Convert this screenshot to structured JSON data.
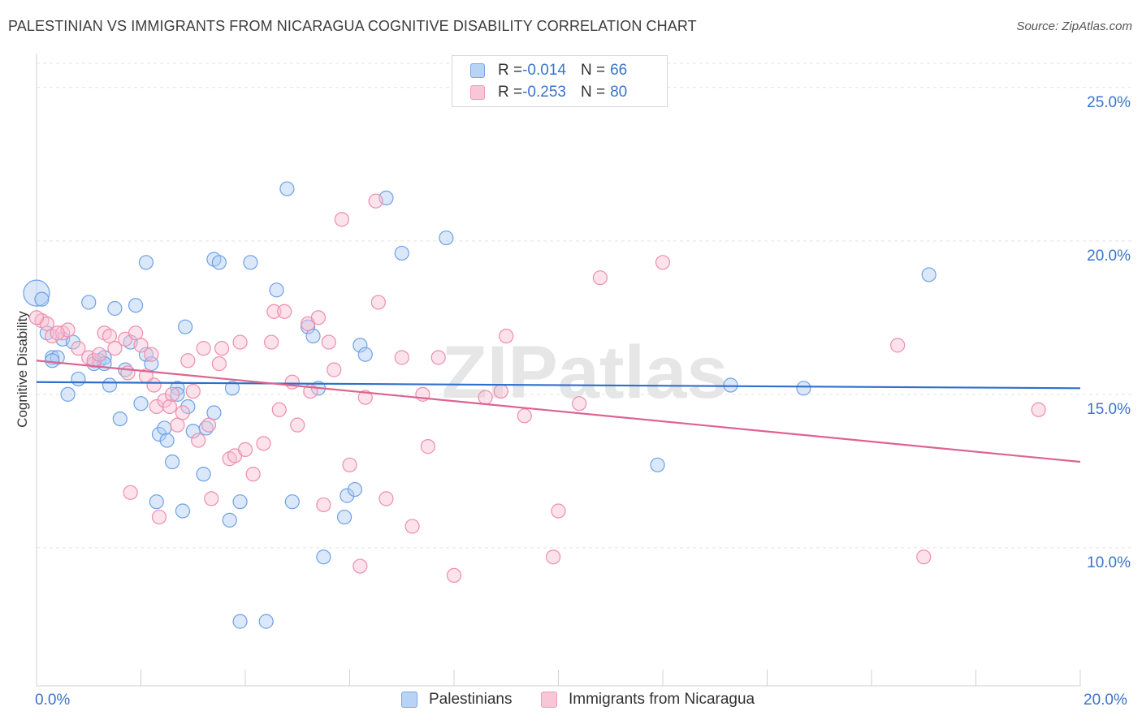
{
  "title": "PALESTINIAN VS IMMIGRANTS FROM NICARAGUA COGNITIVE DISABILITY CORRELATION CHART",
  "source": "Source: ZipAtlas.com",
  "watermark": "ZIPatlas",
  "legend": {
    "series1": {
      "r_label": "R = ",
      "r_value": "-0.014",
      "n_label": "N = ",
      "n_value": "66"
    },
    "series2": {
      "r_label": "R = ",
      "r_value": "-0.253",
      "n_label": "N = ",
      "n_value": "80"
    }
  },
  "chart_data": {
    "type": "scatter",
    "title": "PALESTINIAN VS IMMIGRANTS FROM NICARAGUA COGNITIVE DISABILITY CORRELATION CHART",
    "xlabel": "",
    "ylabel": "Cognitive Disability",
    "xlim": [
      0,
      20
    ],
    "ylim": [
      5.5,
      26
    ],
    "x_tick_labels": [
      "0.0%",
      "20.0%"
    ],
    "y_ticks": [
      10,
      15,
      20,
      25
    ],
    "y_tick_labels": [
      "10.0%",
      "15.0%",
      "20.0%",
      "25.0%"
    ],
    "grid": true,
    "legend_position": "top-center",
    "colors": {
      "Palestinians": "#6fa1e6",
      "Immigrants from Nicaragua": "#ee8eac",
      "line1": "#2f6fcb",
      "line2": "#de6390"
    },
    "series": [
      {
        "name": "Palestinians",
        "trendline": {
          "x": [
            0,
            20
          ],
          "y": [
            15.4,
            15.2
          ]
        },
        "points": [
          [
            0.0,
            18.3
          ],
          [
            0.1,
            18.1
          ],
          [
            0.2,
            17.0
          ],
          [
            0.3,
            16.2
          ],
          [
            0.4,
            16.2
          ],
          [
            0.5,
            16.8
          ],
          [
            0.7,
            16.7
          ],
          [
            0.6,
            15.0
          ],
          [
            0.8,
            15.5
          ],
          [
            1.0,
            18.0
          ],
          [
            1.1,
            16.0
          ],
          [
            1.2,
            16.1
          ],
          [
            1.3,
            16.2
          ],
          [
            1.4,
            15.3
          ],
          [
            1.5,
            17.8
          ],
          [
            1.6,
            14.2
          ],
          [
            1.7,
            15.8
          ],
          [
            1.8,
            16.7
          ],
          [
            1.9,
            17.9
          ],
          [
            2.0,
            14.7
          ],
          [
            2.1,
            19.3
          ],
          [
            2.1,
            16.3
          ],
          [
            2.2,
            16.0
          ],
          [
            2.3,
            11.5
          ],
          [
            2.35,
            13.7
          ],
          [
            2.45,
            13.9
          ],
          [
            2.5,
            13.5
          ],
          [
            2.6,
            12.8
          ],
          [
            2.7,
            15.2
          ],
          [
            2.8,
            11.2
          ],
          [
            2.85,
            17.2
          ],
          [
            2.9,
            14.6
          ],
          [
            3.0,
            13.8
          ],
          [
            3.2,
            12.4
          ],
          [
            3.25,
            13.9
          ],
          [
            3.4,
            19.4
          ],
          [
            3.4,
            14.4
          ],
          [
            3.5,
            19.3
          ],
          [
            3.7,
            10.9
          ],
          [
            3.75,
            15.2
          ],
          [
            3.9,
            11.5
          ],
          [
            3.9,
            7.6
          ],
          [
            4.1,
            19.3
          ],
          [
            4.4,
            7.6
          ],
          [
            4.6,
            18.4
          ],
          [
            4.8,
            21.7
          ],
          [
            4.9,
            11.5
          ],
          [
            5.2,
            17.2
          ],
          [
            5.3,
            16.9
          ],
          [
            5.4,
            15.2
          ],
          [
            5.5,
            9.7
          ],
          [
            5.9,
            11.0
          ],
          [
            5.95,
            11.7
          ],
          [
            6.1,
            11.9
          ],
          [
            6.2,
            16.6
          ],
          [
            6.3,
            16.3
          ],
          [
            6.7,
            21.4
          ],
          [
            7.0,
            19.6
          ],
          [
            7.85,
            20.1
          ],
          [
            11.9,
            12.7
          ],
          [
            13.3,
            15.3
          ],
          [
            14.7,
            15.2
          ],
          [
            17.1,
            18.9
          ],
          [
            0.3,
            16.1
          ],
          [
            1.3,
            16.0
          ],
          [
            2.7,
            15.0
          ]
        ]
      },
      {
        "name": "Immigrants from Nicaragua",
        "trendline": {
          "x": [
            0,
            20
          ],
          "y": [
            16.1,
            12.8
          ]
        },
        "points": [
          [
            0.1,
            17.4
          ],
          [
            0.2,
            17.3
          ],
          [
            0.3,
            16.9
          ],
          [
            0.5,
            17.0
          ],
          [
            0.6,
            17.1
          ],
          [
            0.8,
            16.5
          ],
          [
            1.0,
            16.2
          ],
          [
            1.1,
            16.1
          ],
          [
            1.2,
            16.3
          ],
          [
            1.3,
            17.0
          ],
          [
            1.4,
            16.9
          ],
          [
            1.5,
            16.5
          ],
          [
            1.7,
            16.8
          ],
          [
            1.75,
            15.7
          ],
          [
            1.8,
            11.8
          ],
          [
            1.9,
            17.0
          ],
          [
            2.0,
            16.6
          ],
          [
            2.1,
            15.6
          ],
          [
            2.2,
            16.3
          ],
          [
            2.25,
            15.3
          ],
          [
            2.3,
            14.6
          ],
          [
            2.35,
            11.0
          ],
          [
            2.45,
            14.8
          ],
          [
            2.55,
            14.6
          ],
          [
            2.6,
            15.0
          ],
          [
            2.7,
            14.0
          ],
          [
            2.8,
            14.4
          ],
          [
            2.9,
            16.1
          ],
          [
            3.0,
            15.1
          ],
          [
            3.1,
            13.5
          ],
          [
            3.2,
            16.5
          ],
          [
            3.3,
            14.0
          ],
          [
            3.35,
            11.6
          ],
          [
            3.5,
            16.0
          ],
          [
            3.55,
            16.5
          ],
          [
            3.7,
            12.9
          ],
          [
            3.8,
            13.0
          ],
          [
            3.9,
            16.7
          ],
          [
            4.0,
            13.2
          ],
          [
            4.15,
            12.4
          ],
          [
            4.35,
            13.4
          ],
          [
            4.5,
            16.7
          ],
          [
            4.55,
            17.7
          ],
          [
            4.65,
            14.5
          ],
          [
            4.75,
            17.7
          ],
          [
            4.9,
            15.4
          ],
          [
            5.0,
            14.0
          ],
          [
            5.2,
            17.3
          ],
          [
            5.25,
            15.1
          ],
          [
            5.4,
            17.5
          ],
          [
            5.5,
            11.4
          ],
          [
            5.6,
            16.7
          ],
          [
            5.7,
            15.8
          ],
          [
            5.85,
            20.7
          ],
          [
            6.0,
            12.7
          ],
          [
            6.2,
            9.4
          ],
          [
            6.3,
            14.9
          ],
          [
            6.5,
            21.3
          ],
          [
            6.55,
            18.0
          ],
          [
            6.7,
            11.6
          ],
          [
            7.0,
            16.2
          ],
          [
            7.2,
            10.7
          ],
          [
            7.4,
            15.0
          ],
          [
            7.5,
            13.3
          ],
          [
            7.7,
            16.2
          ],
          [
            8.0,
            9.1
          ],
          [
            8.6,
            14.9
          ],
          [
            8.9,
            15.1
          ],
          [
            9.0,
            16.9
          ],
          [
            9.35,
            14.3
          ],
          [
            9.9,
            9.7
          ],
          [
            10.0,
            11.2
          ],
          [
            10.4,
            14.7
          ],
          [
            10.8,
            18.8
          ],
          [
            12.0,
            19.3
          ],
          [
            16.5,
            16.6
          ],
          [
            17.0,
            9.7
          ],
          [
            19.2,
            14.5
          ],
          [
            0.0,
            17.5
          ],
          [
            0.4,
            17.0
          ]
        ]
      }
    ]
  },
  "bottom_legend": {
    "series1": "Palestinians",
    "series2": "Immigrants from Nicaragua"
  }
}
